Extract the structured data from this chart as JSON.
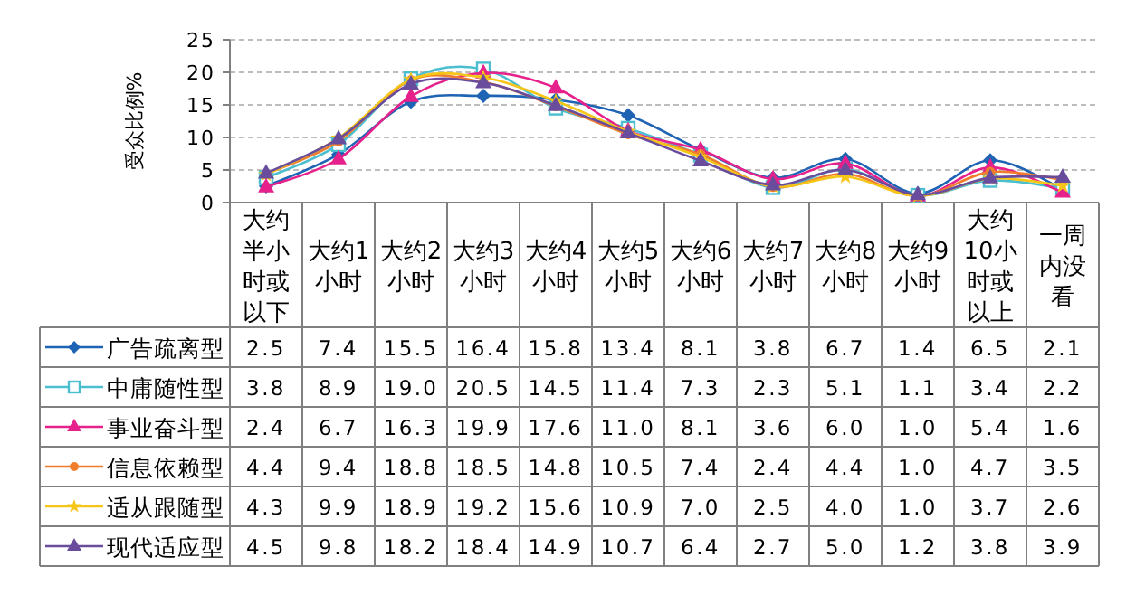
{
  "chart_data": {
    "type": "line",
    "ylabel": "受众比例%",
    "ylim": [
      0,
      25
    ],
    "yticks": [
      0,
      5,
      10,
      15,
      20,
      25
    ],
    "grid": "y",
    "legend": "bottom",
    "line_style": "solid",
    "categories": [
      "大约半小时或以下",
      "大约1小时",
      "大约2小时",
      "大约3小时",
      "大约4小时",
      "大约5小时",
      "大约6小时",
      "大约7小时",
      "大约8小时",
      "大约9小时",
      "大约10小时或以上",
      "一周内没看"
    ],
    "series": [
      {
        "name": "广告疏离型",
        "color": "#1f64b4",
        "marker": "diamond",
        "values": [
          2.5,
          7.4,
          15.5,
          16.4,
          15.8,
          13.4,
          8.1,
          3.8,
          6.7,
          1.4,
          6.5,
          2.1
        ],
        "value_labels": [
          "2.5",
          "7.4",
          "15.5",
          "16.4",
          "15.8",
          "13.4",
          "8.1",
          "3.8",
          "6.7",
          "1.4",
          "6.5",
          "2.1"
        ]
      },
      {
        "name": "中庸随性型",
        "color": "#4bbfcf",
        "marker": "square",
        "values": [
          3.8,
          8.9,
          19.0,
          20.5,
          14.5,
          11.4,
          7.3,
          2.3,
          5.1,
          1.1,
          3.4,
          2.2
        ],
        "value_labels": [
          "3.8",
          "8.9",
          "19.0",
          "20.5",
          "14.5",
          "11.4",
          "7.3",
          "2.3",
          "5.1",
          "1.1",
          "3.4",
          "2.2"
        ]
      },
      {
        "name": "事业奋斗型",
        "color": "#e6218b",
        "marker": "triangle",
        "values": [
          2.4,
          6.7,
          16.3,
          19.9,
          17.6,
          11.0,
          8.1,
          3.6,
          6.0,
          1.0,
          5.4,
          1.6
        ],
        "value_labels": [
          "2.4",
          "6.7",
          "16.3",
          "19.9",
          "17.6",
          "11.0",
          "8.1",
          "3.6",
          "6.0",
          "1.0",
          "5.4",
          "1.6"
        ]
      },
      {
        "name": "信息依赖型",
        "color": "#f07d2d",
        "marker": "circle",
        "values": [
          4.4,
          9.4,
          18.8,
          18.5,
          14.8,
          10.5,
          7.4,
          2.4,
          4.4,
          1.0,
          4.7,
          3.5
        ],
        "value_labels": [
          "4.4",
          "9.4",
          "18.8",
          "18.5",
          "14.8",
          "10.5",
          "7.4",
          "2.4",
          "4.4",
          "1.0",
          "4.7",
          "3.5"
        ]
      },
      {
        "name": "适从跟随型",
        "color": "#f5c518",
        "marker": "star",
        "values": [
          4.3,
          9.9,
          18.9,
          19.2,
          15.6,
          10.9,
          7.0,
          2.5,
          4.0,
          1.0,
          3.7,
          2.6
        ],
        "value_labels": [
          "4.3",
          "9.9",
          "18.9",
          "19.2",
          "15.6",
          "10.9",
          "7.0",
          "2.5",
          "4.0",
          "1.0",
          "3.7",
          "2.6"
        ]
      },
      {
        "name": "现代适应型",
        "color": "#6a4c9c",
        "marker": "triangle",
        "values": [
          4.5,
          9.8,
          18.2,
          18.4,
          14.9,
          10.7,
          6.4,
          2.7,
          5.0,
          1.2,
          3.8,
          3.9
        ],
        "value_labels": [
          "4.5",
          "9.8",
          "18.2",
          "18.4",
          "14.9",
          "10.7",
          "6.4",
          "2.7",
          "5.0",
          "1.2",
          "3.8",
          "3.9"
        ]
      }
    ]
  }
}
